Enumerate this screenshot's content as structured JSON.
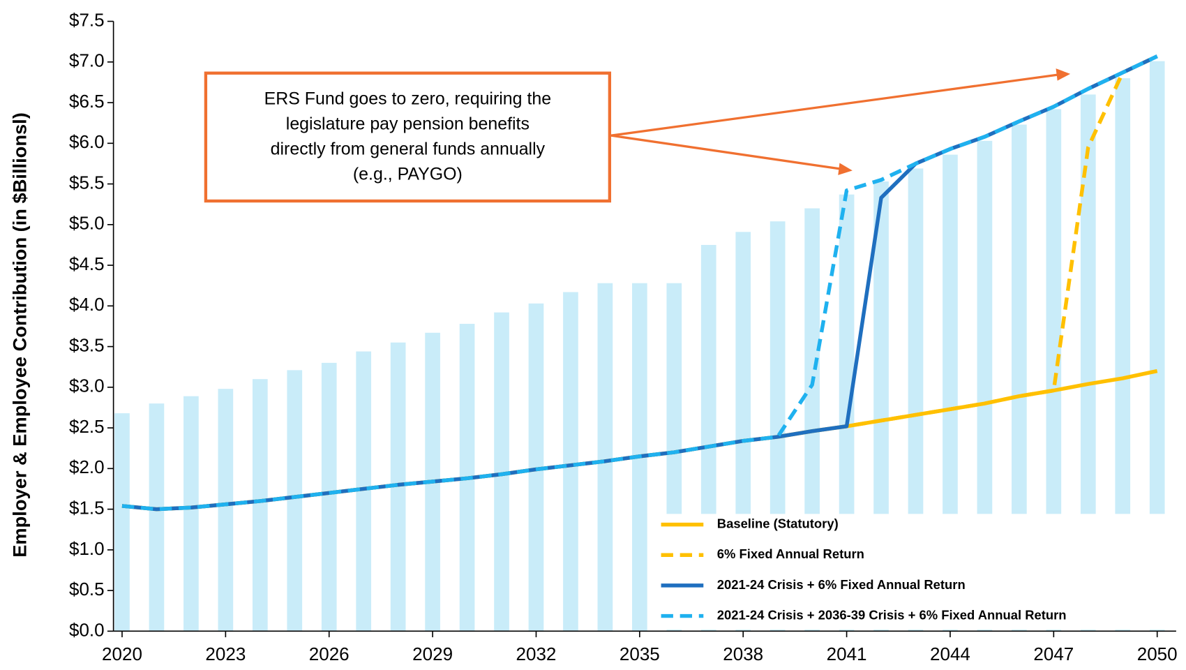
{
  "chart_data": {
    "type": "line",
    "y_label": "Employer & Employee  Contribution (in $Billionsl)",
    "x": [
      2020,
      2021,
      2022,
      2023,
      2024,
      2025,
      2026,
      2027,
      2028,
      2029,
      2030,
      2031,
      2032,
      2033,
      2034,
      2035,
      2036,
      2037,
      2038,
      2039,
      2040,
      2041,
      2042,
      2043,
      2044,
      2045,
      2046,
      2047,
      2048,
      2049,
      2050
    ],
    "xlim": [
      2019.75,
      2050.55
    ],
    "xticks": [
      2020,
      2023,
      2026,
      2029,
      2032,
      2035,
      2038,
      2041,
      2044,
      2047,
      2050
    ],
    "ylim": [
      0,
      7.5
    ],
    "yticks": [
      {
        "value": 0,
        "label": "$0.0"
      },
      {
        "value": 0.5,
        "label": "$0.5"
      },
      {
        "value": 1,
        "label": "$1.0"
      },
      {
        "value": 1.5,
        "label": "$1.5"
      },
      {
        "value": 2,
        "label": "$2.0"
      },
      {
        "value": 2.5,
        "label": "$2.5"
      },
      {
        "value": 3,
        "label": "$3.0"
      },
      {
        "value": 3.5,
        "label": "$3.5"
      },
      {
        "value": 4,
        "label": "$4.0"
      },
      {
        "value": 4.5,
        "label": "$4.5"
      },
      {
        "value": 5,
        "label": "$5.0"
      },
      {
        "value": 5.5,
        "label": "$5.5"
      },
      {
        "value": 6,
        "label": "$6.0"
      },
      {
        "value": 6.5,
        "label": "$6.5"
      },
      {
        "value": 7,
        "label": "$7.0"
      },
      {
        "value": 7.5,
        "label": "$7.5"
      }
    ],
    "bars": {
      "color": "#c9ecf9",
      "values": [
        2.68,
        2.8,
        2.89,
        2.98,
        3.1,
        3.21,
        3.3,
        3.44,
        3.55,
        3.67,
        3.78,
        3.92,
        4.03,
        4.17,
        4.28,
        4.28,
        4.28,
        4.75,
        4.91,
        5.04,
        5.2,
        5.37,
        5.53,
        5.69,
        5.86,
        6.03,
        6.23,
        6.42,
        6.6,
        6.8,
        7.01
      ]
    },
    "series": [
      {
        "name": "Baseline (Statutory)",
        "color": "#ffc000",
        "dash": false,
        "values": [
          1.54,
          1.5,
          1.52,
          1.56,
          1.6,
          1.65,
          1.7,
          1.75,
          1.8,
          1.84,
          1.88,
          1.93,
          1.99,
          2.04,
          2.09,
          2.15,
          2.2,
          2.27,
          2.34,
          2.39,
          2.46,
          2.52,
          2.59,
          2.66,
          2.73,
          2.8,
          2.89,
          2.96,
          3.04,
          3.11,
          3.2
        ]
      },
      {
        "name": "6% Fixed Annual Return",
        "color": "#ffc000",
        "dash": true,
        "values": [
          1.54,
          1.5,
          1.52,
          1.56,
          1.6,
          1.65,
          1.7,
          1.75,
          1.8,
          1.84,
          1.88,
          1.93,
          1.99,
          2.04,
          2.09,
          2.15,
          2.2,
          2.27,
          2.34,
          2.39,
          2.46,
          2.52,
          2.59,
          2.66,
          2.73,
          2.8,
          2.89,
          2.96,
          5.95,
          6.87,
          7.07
        ]
      },
      {
        "name": "2021-24 Crisis + 6% Fixed Annual Return",
        "color": "#1f6fbf",
        "dash": false,
        "values": [
          1.54,
          1.5,
          1.52,
          1.56,
          1.6,
          1.65,
          1.7,
          1.75,
          1.8,
          1.84,
          1.88,
          1.93,
          1.99,
          2.04,
          2.09,
          2.15,
          2.2,
          2.27,
          2.34,
          2.39,
          2.46,
          2.52,
          5.33,
          5.75,
          5.93,
          6.08,
          6.27,
          6.45,
          6.67,
          6.87,
          7.07
        ]
      },
      {
        "name": "2021-24 Crisis + 2036-39 Crisis + 6% Fixed Annual Return",
        "color": "#1fb1ef",
        "dash": true,
        "values": [
          1.54,
          1.5,
          1.52,
          1.56,
          1.6,
          1.65,
          1.7,
          1.75,
          1.8,
          1.84,
          1.88,
          1.93,
          1.99,
          2.04,
          2.09,
          2.15,
          2.2,
          2.27,
          2.34,
          2.39,
          3.03,
          5.42,
          5.55,
          5.75,
          5.93,
          6.08,
          6.27,
          6.45,
          6.67,
          6.87,
          7.07
        ]
      }
    ],
    "annotation": {
      "lines": [
        "ERS Fund goes to zero, requiring the",
        "legislature pay pension benefits",
        "directly from general funds annually",
        "(e.g., PAYGO)"
      ],
      "color": "#f07030"
    },
    "legend": "lower right"
  }
}
